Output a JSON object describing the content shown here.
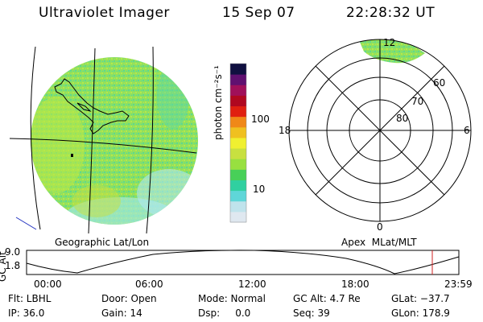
{
  "header": {
    "title": "Ultraviolet Imager",
    "date": "15 Sep 07",
    "time": "22:28:32 UT"
  },
  "colorbar": {
    "label": "photon cm⁻²s⁻¹",
    "ticks": [
      "100",
      "10"
    ],
    "colors": [
      "#dfe8f0",
      "#bfe3ec",
      "#5fd6d8",
      "#30d0a0",
      "#48d058",
      "#98e040",
      "#c8e040",
      "#f0f030",
      "#f0c020",
      "#f08818",
      "#e02010",
      "#b00820",
      "#a0105a",
      "#601070",
      "#101040"
    ]
  },
  "left_panel": {
    "caption": "Geographic Lat/Lon",
    "image_color": "#88e060"
  },
  "right_panel": {
    "caption": "Apex  MLat/MLT",
    "lat_labels": [
      "60",
      "70",
      "80"
    ],
    "mlt_labels": {
      "top": "12",
      "left": "18",
      "right": "6",
      "bottom": "0"
    }
  },
  "altitude_plot": {
    "ylabel": "GC Alt",
    "yticks": [
      "9.0",
      "1.8"
    ],
    "xticks": [
      "00:00",
      "06:00",
      "12:00",
      "18:00",
      "23:59"
    ],
    "marker_color": "#d02020"
  },
  "info": {
    "col1": [
      "Flt: LBHL",
      "IP: 36.0"
    ],
    "col2": [
      "Door: Open",
      "Gain: 14"
    ],
    "col3": [
      "Mode: Normal",
      "Dsp:     0.0"
    ],
    "col4": [
      "GC Alt: 4.7 Re",
      "Seq: 39"
    ],
    "col5": [
      "GLat: −37.7",
      "GLon: 178.9"
    ]
  }
}
